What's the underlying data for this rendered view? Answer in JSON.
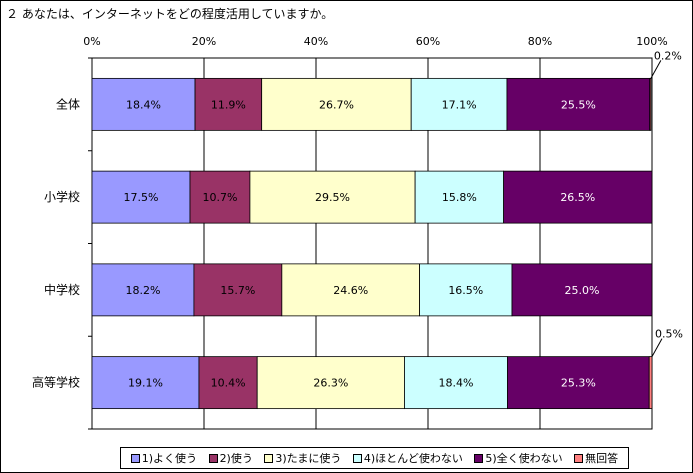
{
  "chart_data": {
    "type": "bar",
    "orientation": "horizontal",
    "stacked": true,
    "title": "２ あなたは、インターネットをどの程度活用していますか。",
    "categories": [
      "全体",
      "小学校",
      "中学校",
      "高等学校"
    ],
    "series": [
      {
        "name": "1)よく使う",
        "color": "#9999ff",
        "values": [
          18.4,
          17.5,
          18.2,
          19.1
        ]
      },
      {
        "name": "2)使う",
        "color": "#993366",
        "values": [
          11.9,
          10.7,
          15.7,
          10.4
        ]
      },
      {
        "name": "3)たまに使う",
        "color": "#ffffcc",
        "values": [
          26.7,
          29.5,
          24.6,
          26.3
        ]
      },
      {
        "name": "4)ほとんど使わない",
        "color": "#ccffff",
        "values": [
          17.1,
          15.8,
          16.5,
          18.4
        ]
      },
      {
        "name": "5)全く使わない",
        "color": "#660066",
        "values": [
          25.5,
          26.5,
          25.0,
          25.3
        ]
      },
      {
        "name": "無回答",
        "color": "#ff8080",
        "values": [
          0.2,
          0.0,
          0.0,
          0.5
        ]
      }
    ],
    "labels": [
      [
        "18.4%",
        "11.9%",
        "26.7%",
        "17.1%",
        "25.5%",
        "0.2%"
      ],
      [
        "17.5%",
        "10.7%",
        "29.5%",
        "15.8%",
        "26.5%",
        ""
      ],
      [
        "18.2%",
        "15.7%",
        "24.6%",
        "16.5%",
        "25.0%",
        ""
      ],
      [
        "19.1%",
        "10.4%",
        "26.3%",
        "18.4%",
        "25.3%",
        "0.5%"
      ]
    ],
    "xticks": [
      "0%",
      "20%",
      "40%",
      "60%",
      "80%",
      "100%"
    ],
    "xlim": [
      0,
      100
    ],
    "grid": true,
    "legend_position": "bottom"
  }
}
